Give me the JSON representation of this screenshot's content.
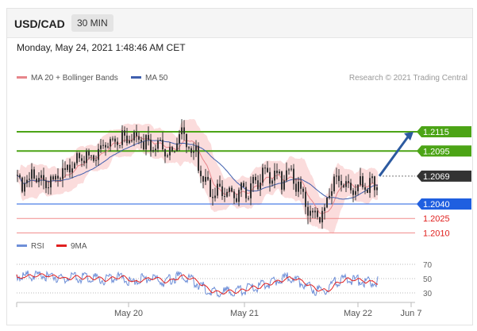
{
  "header": {
    "symbol": "USD/CAD",
    "timeframe": "30 MIN",
    "datetime": "Monday, May 24, 2021 1:48:46 AM CET"
  },
  "legend": {
    "ma20_bb": "MA 20 + Bollinger Bands",
    "ma50": "MA 50",
    "credit": "Research © 2021 Trading Central",
    "rsi": "RSI",
    "rsi_ma": "9MA"
  },
  "colors": {
    "resistance": "#4ca416",
    "support": "#1f5fe0",
    "support_faint": "#f08a8a",
    "support_faint_text": "#e0201e",
    "current": "#333333",
    "bollinger": "#f9d0d0",
    "ma20": "#e7858b",
    "ma50": "#3f5fae",
    "arrow": "#2c5aa0",
    "rsi": "#6e8fd8",
    "rsi_ma": "#e02020",
    "candle": "#333333"
  },
  "chart_data": {
    "type": "candlestick",
    "pair": "USD/CAD",
    "timeframe": "30 MIN",
    "ylim": [
      2.0,
      2.13
    ],
    "x_ticks": [
      "May 20",
      "May 21",
      "May 22",
      "Jun 7"
    ],
    "levels": [
      {
        "value": 1.2115,
        "label": "1.2115",
        "kind": "resistance"
      },
      {
        "value": 1.2095,
        "label": "1.2095",
        "kind": "resistance"
      },
      {
        "value": 1.2069,
        "label": "1.2069",
        "kind": "current"
      },
      {
        "value": 1.204,
        "label": "1.2040",
        "kind": "support"
      },
      {
        "value": 1.2025,
        "label": "1.2025",
        "kind": "support_faint"
      },
      {
        "value": 1.201,
        "label": "1.2010",
        "kind": "support_faint"
      }
    ],
    "price_anchors": [
      [
        0,
        1.2066
      ],
      [
        20,
        1.2072
      ],
      [
        40,
        1.2066
      ],
      [
        60,
        1.2076
      ],
      [
        80,
        1.2093
      ],
      [
        100,
        1.2096
      ],
      [
        115,
        1.2112
      ],
      [
        125,
        1.2106
      ],
      [
        140,
        1.2118
      ],
      [
        160,
        1.211
      ],
      [
        180,
        1.2104
      ],
      [
        195,
        1.2097
      ],
      [
        205,
        1.212
      ],
      [
        215,
        1.2105
      ],
      [
        225,
        1.2096
      ],
      [
        235,
        1.2074
      ],
      [
        245,
        1.2053
      ],
      [
        260,
        1.206
      ],
      [
        275,
        1.2055
      ],
      [
        290,
        1.206
      ],
      [
        305,
        1.2072
      ],
      [
        320,
        1.2075
      ],
      [
        335,
        1.2069
      ],
      [
        345,
        1.208
      ],
      [
        355,
        1.2058
      ],
      [
        365,
        1.204
      ],
      [
        375,
        1.2034
      ],
      [
        385,
        1.203
      ],
      [
        395,
        1.2064
      ],
      [
        405,
        1.207
      ],
      [
        415,
        1.2066
      ],
      [
        425,
        1.2061
      ],
      [
        435,
        1.2068
      ],
      [
        445,
        1.2064
      ],
      [
        455,
        1.2069
      ]
    ],
    "forecast_path": [
      [
        455,
        1.2069
      ],
      [
        500,
        1.2115
      ]
    ],
    "rsi": {
      "levels": [
        70,
        50,
        30
      ],
      "anchors": [
        [
          0,
          57
        ],
        [
          30,
          58
        ],
        [
          60,
          55
        ],
        [
          90,
          55
        ],
        [
          115,
          52
        ],
        [
          130,
          56
        ],
        [
          145,
          50
        ],
        [
          165,
          55
        ],
        [
          185,
          50
        ],
        [
          205,
          57
        ],
        [
          220,
          53
        ],
        [
          235,
          42
        ],
        [
          250,
          34
        ],
        [
          270,
          36
        ],
        [
          290,
          39
        ],
        [
          310,
          45
        ],
        [
          330,
          52
        ],
        [
          345,
          56
        ],
        [
          360,
          48
        ],
        [
          375,
          38
        ],
        [
          385,
          36
        ],
        [
          400,
          49
        ],
        [
          420,
          53
        ],
        [
          440,
          49
        ],
        [
          455,
          50
        ]
      ]
    }
  }
}
